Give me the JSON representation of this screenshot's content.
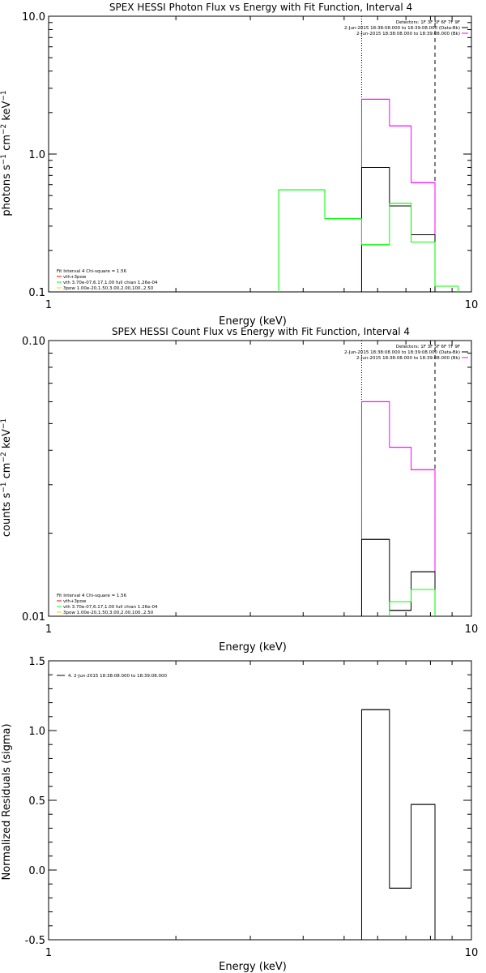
{
  "chart_data": [
    {
      "type": "line",
      "title": "SPEX HESSI Photon Flux vs Energy with Fit Function, Interval 4",
      "xlabel": "Energy (keV)",
      "ylabel": "photons s⁻¹ cm⁻² keV⁻¹",
      "xscale": "log",
      "yscale": "log",
      "xlim": [
        1,
        10
      ],
      "ylim": [
        0.1,
        10
      ],
      "xticklabels": [
        "1",
        "10"
      ],
      "yticks": [
        0.1,
        1.0,
        10.0
      ],
      "yticklabels": [
        "0.1",
        "1.0",
        "10.0"
      ],
      "legend_top": {
        "position": "top-right",
        "entries": [
          {
            "text": "Detectors: 1F 3F 5F 6F 7F 9F",
            "color": ""
          },
          {
            "text": "2-Jun-2015 18:38:08.000 to 18:39:08.000 (Data-Bk)",
            "color": "#000000"
          },
          {
            "text": "2-Jun-2015 18:38:08.000 to 18:39:08.000 (Bk)",
            "color": "#ff00ff"
          }
        ]
      },
      "legend_bottom": {
        "position": "bottom-left",
        "entries": [
          {
            "text": "Fit Interval 4    Chi-square = 1.56",
            "color": ""
          },
          {
            "text": "vth+3pow",
            "color": "#ff0000"
          },
          {
            "text": "vth 3.70e-07,6.17,1.00  full chian 1.26e-04",
            "color": "#00ff00"
          },
          {
            "text": "3pow 1.00e-20,1.50,3.00,2.00,100.,2.50",
            "color": "#ffcc00"
          }
        ]
      },
      "series": [
        {
          "name": "2-Jun-2015 18:38:08.000 to 18:39:08.000 (Bk)",
          "color": "#ff00ff",
          "edges": [
            5.5,
            6.4,
            7.2,
            8.2
          ],
          "values": [
            2.5,
            1.6,
            0.62
          ]
        },
        {
          "name": "2-Jun-2015 18:38:08.000 to 18:39:08.000 (Data-Bk)",
          "color": "#000000",
          "edges": [
            5.5,
            6.4,
            7.2,
            8.2
          ],
          "values": [
            0.8,
            0.42,
            0.26
          ]
        },
        {
          "name": "vth 3.70e-07,6.17,1.00  full chian 1.26e-04",
          "color": "#00ff00",
          "edges": [
            3.5,
            4.5,
            5.5,
            6.4,
            7.2,
            8.2,
            9.3
          ],
          "values": [
            0.55,
            0.34,
            0.22,
            0.44,
            0.23,
            0.11
          ]
        }
      ],
      "vlines": [
        {
          "x": 5.5,
          "style": "dotted"
        },
        {
          "x": 8.2,
          "style": "dashed"
        }
      ]
    },
    {
      "type": "line",
      "title": "SPEX HESSI Count Flux vs Energy with Fit Function, Interval 4",
      "xlabel": "Energy (keV)",
      "ylabel": "counts s⁻¹ cm⁻² keV⁻¹",
      "xscale": "log",
      "yscale": "log",
      "xlim": [
        1,
        10
      ],
      "ylim": [
        0.01,
        0.1
      ],
      "xticklabels": [
        "1",
        "10"
      ],
      "yticks": [
        0.01,
        0.1
      ],
      "yticklabels": [
        "0.01",
        "0.10"
      ],
      "legend_top": {
        "position": "top-right",
        "entries": [
          {
            "text": "Detectors: 1F 3F 5F 6F 7F 9F",
            "color": ""
          },
          {
            "text": "2-Jun-2015 18:38:08.000 to 18:39:08.000 (Data-Bk)",
            "color": "#000000"
          },
          {
            "text": "2-Jun-2015 18:38:08.000 to 18:39:08.000 (Bk)",
            "color": "#ff00ff"
          }
        ]
      },
      "legend_bottom": {
        "position": "bottom-left",
        "entries": [
          {
            "text": "Fit Interval 4    Chi-square = 1.56",
            "color": ""
          },
          {
            "text": "vth+3pow",
            "color": "#ff0000"
          },
          {
            "text": "vth 3.70e-07,6.17,1.00  full chian 1.26e-04",
            "color": "#00ff00"
          },
          {
            "text": "3pow 1.00e-20,1.50,3.00,2.00,100.,2.50",
            "color": "#ffcc00"
          }
        ]
      },
      "series": [
        {
          "name": "2-Jun-2015 18:38:08.000 to 18:39:08.000 (Bk)",
          "color": "#ff00ff",
          "edges": [
            5.5,
            6.4,
            7.2,
            8.2
          ],
          "values": [
            0.06,
            0.041,
            0.034
          ]
        },
        {
          "name": "2-Jun-2015 18:38:08.000 to 18:39:08.000 (Data-Bk)",
          "color": "#000000",
          "edges": [
            5.5,
            6.4,
            7.2,
            8.2
          ],
          "values": [
            0.019,
            0.0105,
            0.0145
          ]
        },
        {
          "name": "vth 3.70e-07,6.17,1.00  full chian 1.26e-04",
          "color": "#00ff00",
          "edges": [
            6.4,
            7.2,
            8.2
          ],
          "values": [
            0.0113,
            0.0125
          ]
        }
      ],
      "vlines": [
        {
          "x": 5.5,
          "style": "dotted"
        },
        {
          "x": 8.2,
          "style": "dashed"
        }
      ]
    },
    {
      "type": "line",
      "title": "",
      "xlabel": "Energy (keV)",
      "ylabel": "Normalized Residuals (sigma)",
      "xscale": "log",
      "yscale": "linear",
      "xlim": [
        1,
        10
      ],
      "ylim": [
        -0.5,
        1.5
      ],
      "xticklabels": [
        "1",
        "10"
      ],
      "yticks": [
        -0.5,
        0.0,
        0.5,
        1.0,
        1.5
      ],
      "yticklabels": [
        "-0.5",
        "0.0",
        "0.5",
        "1.0",
        "1.5"
      ],
      "legend_top": {
        "position": "top-left",
        "entries": [
          {
            "text": "4.  2-Jun-2015 18:38:08.000 to 18:39:08.000",
            "color": "#000000"
          }
        ]
      },
      "series": [
        {
          "name": "4.  2-Jun-2015 18:38:08.000 to 18:39:08.000",
          "color": "#000000",
          "edges": [
            5.5,
            6.4,
            7.2,
            8.2
          ],
          "values": [
            1.15,
            -0.13,
            0.47
          ],
          "baseline": -0.5
        }
      ],
      "vlines": []
    }
  ]
}
